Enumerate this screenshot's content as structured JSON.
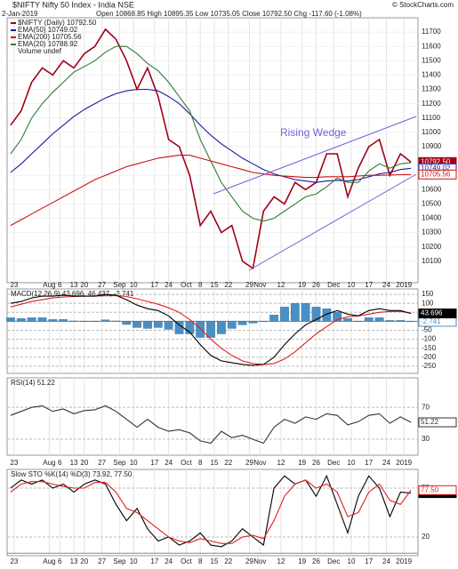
{
  "header": {
    "title": "$NIFTY Nifty 50 Index - India NSE",
    "site": "© StockCharts.com",
    "date": "2-Jan-2019",
    "quote": "Open 10868.85 High 10895.35 Low 10735.05 Close 10792.50 Chg -117.60 (-1.08%)"
  },
  "chart_data": [
    {
      "type": "line",
      "annotation": "Rising Wedge",
      "legend_extra": "Volume undef",
      "x": [
        1,
        4,
        7,
        10,
        13,
        16,
        19,
        22,
        25,
        28,
        31,
        34,
        37,
        40,
        43,
        46,
        49,
        52,
        55,
        58,
        61,
        64,
        67,
        70,
        73,
        76,
        79,
        82,
        85,
        88,
        91,
        94,
        97,
        100,
        103,
        106,
        109,
        112,
        115
      ],
      "xlim": [
        0,
        117
      ],
      "xticks": [
        {
          "value": 2,
          "label": "23"
        },
        {
          "value": 12,
          "label": "Aug"
        },
        {
          "value": 15,
          "label": "6"
        },
        {
          "value": 19,
          "label": "13"
        },
        {
          "value": 22,
          "label": "20"
        },
        {
          "value": 27,
          "label": "27"
        },
        {
          "value": 32,
          "label": "Sep"
        },
        {
          "value": 36,
          "label": "10"
        },
        {
          "value": 42,
          "label": "17"
        },
        {
          "value": 46,
          "label": "24"
        },
        {
          "value": 51,
          "label": "Oct"
        },
        {
          "value": 55,
          "label": "8"
        },
        {
          "value": 59,
          "label": "15"
        },
        {
          "value": 63,
          "label": "22"
        },
        {
          "value": 69,
          "label": "29"
        },
        {
          "value": 72,
          "label": "Nov"
        },
        {
          "value": 78,
          "label": "12"
        },
        {
          "value": 84,
          "label": "19"
        },
        {
          "value": 88,
          "label": "26"
        },
        {
          "value": 93,
          "label": "Dec"
        },
        {
          "value": 98,
          "label": "10"
        },
        {
          "value": 103,
          "label": "17"
        },
        {
          "value": 108,
          "label": "24"
        },
        {
          "value": 113,
          "label": "2019"
        }
      ],
      "ylim": [
        9950,
        11800
      ],
      "yticks": [
        10100,
        10200,
        10300,
        10400,
        10500,
        10600,
        10700,
        10900,
        11000,
        11100,
        11200,
        11300,
        11400,
        11500,
        11600,
        11700
      ],
      "series": [
        {
          "name": "$NIFTY (Daily) 10792.50",
          "color": "#a00018",
          "end_label": "10792.50",
          "values": [
            11050,
            11150,
            11350,
            11450,
            11400,
            11500,
            11450,
            11550,
            11600,
            11720,
            11650,
            11500,
            11300,
            11450,
            11250,
            10950,
            10900,
            10700,
            10350,
            10450,
            10300,
            10350,
            10100,
            10050,
            10450,
            10550,
            10500,
            10650,
            10600,
            10650,
            10850,
            10850,
            10550,
            10750,
            10900,
            10950,
            10700,
            10850,
            10792.5
          ]
        },
        {
          "name": "EMA(50) 10749.02",
          "color": "#1a1a9c",
          "end_label": "10749.02",
          "values": [
            10720,
            10780,
            10850,
            10920,
            10990,
            11050,
            11110,
            11160,
            11200,
            11240,
            11270,
            11290,
            11300,
            11300,
            11290,
            11250,
            11200,
            11130,
            11050,
            10980,
            10920,
            10870,
            10820,
            10780,
            10740,
            10710,
            10690,
            10670,
            10660,
            10650,
            10660,
            10665,
            10660,
            10670,
            10690,
            10710,
            10720,
            10740,
            10749.02
          ]
        },
        {
          "name": "EMA(200) 10705.56",
          "color": "#cc1111",
          "end_label": "10705.56",
          "values": [
            10350,
            10390,
            10430,
            10470,
            10510,
            10550,
            10590,
            10630,
            10670,
            10700,
            10730,
            10760,
            10780,
            10800,
            10820,
            10830,
            10840,
            10840,
            10820,
            10800,
            10780,
            10760,
            10740,
            10720,
            10710,
            10700,
            10695,
            10690,
            10685,
            10685,
            10690,
            10690,
            10690,
            10695,
            10700,
            10700,
            10702,
            10704,
            10705.56
          ]
        },
        {
          "name": "EMA(20) 10788.92",
          "color": "#2e7d32",
          "values": [
            10850,
            10950,
            11100,
            11200,
            11280,
            11350,
            11420,
            11460,
            11500,
            11560,
            11600,
            11600,
            11550,
            11480,
            11430,
            11350,
            11250,
            11150,
            10950,
            10800,
            10650,
            10550,
            10450,
            10400,
            10380,
            10400,
            10450,
            10500,
            10550,
            10570,
            10620,
            10680,
            10650,
            10650,
            10730,
            10780,
            10750,
            10780,
            10788.92
          ]
        }
      ]
    },
    {
      "type": "line",
      "title": "MACD(12,26,9) 43.696, 46.437, -2.741",
      "x": [
        1,
        4,
        7,
        10,
        13,
        16,
        19,
        22,
        25,
        28,
        31,
        34,
        37,
        40,
        43,
        46,
        49,
        52,
        55,
        58,
        61,
        64,
        67,
        70,
        73,
        76,
        79,
        82,
        85,
        88,
        91,
        94,
        97,
        100,
        103,
        106,
        109,
        112,
        115
      ],
      "ylim": [
        -290,
        180
      ],
      "yticks": [
        150,
        100,
        50,
        0,
        -50,
        -100,
        -150,
        -200,
        -250
      ],
      "series": [
        {
          "style": "bar",
          "color": "#4a8fc4",
          "end_label": "-2.741",
          "values": [
            20,
            15,
            20,
            20,
            10,
            10,
            2,
            0,
            0,
            8,
            2,
            -18,
            -35,
            -40,
            -35,
            -45,
            -70,
            -70,
            -90,
            -90,
            -70,
            -40,
            -20,
            -10,
            0,
            35,
            80,
            100,
            100,
            80,
            70,
            50,
            15,
            0,
            20,
            20,
            5,
            5,
            -2.741
          ]
        },
        {
          "color": "#e02020",
          "values": [
            80,
            95,
            110,
            120,
            130,
            135,
            138,
            140,
            140,
            142,
            143,
            138,
            125,
            110,
            95,
            75,
            50,
            10,
            -40,
            -100,
            -150,
            -190,
            -220,
            -235,
            -240,
            -235,
            -210,
            -170,
            -120,
            -70,
            -30,
            10,
            25,
            30,
            40,
            50,
            55,
            55,
            46.437
          ]
        },
        {
          "color": "#000000",
          "end_label": "43.696",
          "values": [
            100,
            110,
            130,
            140,
            140,
            145,
            140,
            140,
            140,
            150,
            145,
            120,
            90,
            70,
            60,
            30,
            -20,
            -60,
            -130,
            -190,
            -220,
            -230,
            -240,
            -245,
            -240,
            -200,
            -130,
            -70,
            -20,
            10,
            40,
            60,
            40,
            30,
            60,
            70,
            60,
            60,
            43.696
          ]
        }
      ]
    },
    {
      "type": "line",
      "title": "RSI(14) 51.22",
      "x": [
        1,
        4,
        7,
        10,
        13,
        16,
        19,
        22,
        25,
        28,
        31,
        34,
        37,
        40,
        43,
        46,
        49,
        52,
        55,
        58,
        61,
        64,
        67,
        70,
        73,
        76,
        79,
        82,
        85,
        88,
        91,
        94,
        97,
        100,
        103,
        106,
        109,
        112,
        115
      ],
      "ylim": [
        10,
        107
      ],
      "yticks": [
        70,
        30
      ],
      "series": [
        {
          "color": "#333333",
          "end_label": "51.22",
          "values": [
            60,
            65,
            70,
            72,
            65,
            68,
            62,
            66,
            67,
            72,
            65,
            55,
            45,
            55,
            45,
            40,
            42,
            38,
            28,
            25,
            40,
            32,
            35,
            30,
            25,
            45,
            55,
            50,
            58,
            55,
            62,
            60,
            48,
            52,
            60,
            62,
            50,
            58,
            51.22
          ]
        }
      ]
    },
    {
      "type": "line",
      "title": "Slow STO %K(14) %D(3) 73.92, 77.50",
      "x": [
        1,
        4,
        7,
        10,
        13,
        16,
        19,
        22,
        25,
        28,
        31,
        34,
        37,
        40,
        43,
        46,
        49,
        52,
        55,
        58,
        61,
        64,
        67,
        70,
        73,
        76,
        79,
        82,
        85,
        88,
        91,
        94,
        97,
        100,
        103,
        106,
        109,
        112,
        115
      ],
      "ylim": [
        -3,
        103
      ],
      "yticks": [
        80,
        20
      ],
      "series": [
        {
          "color": "#000000",
          "end_label": "73.92",
          "values": [
            80,
            90,
            85,
            90,
            80,
            85,
            75,
            85,
            90,
            85,
            60,
            40,
            55,
            30,
            15,
            20,
            10,
            15,
            25,
            10,
            8,
            15,
            30,
            20,
            10,
            80,
            95,
            85,
            90,
            70,
            95,
            60,
            25,
            70,
            95,
            80,
            45,
            75,
            73.92
          ]
        },
        {
          "color": "#e02020",
          "end_label": "77.50",
          "values": [
            75,
            85,
            88,
            88,
            85,
            82,
            80,
            80,
            87,
            87,
            75,
            55,
            50,
            40,
            30,
            20,
            15,
            13,
            18,
            15,
            12,
            12,
            20,
            22,
            18,
            40,
            70,
            85,
            90,
            80,
            85,
            75,
            45,
            50,
            75,
            85,
            65,
            60,
            77.5
          ]
        }
      ]
    }
  ]
}
